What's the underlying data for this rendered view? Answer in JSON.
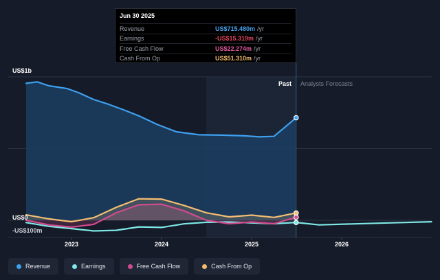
{
  "tooltip": {
    "date": "Jun 30 2025",
    "rows": [
      {
        "label": "Revenue",
        "value": "US$715.480m",
        "unit": "/yr",
        "color": "#4aa3ef"
      },
      {
        "label": "Earnings",
        "value": "-US$15.319m",
        "unit": "/yr",
        "color": "#e4455c"
      },
      {
        "label": "Free Cash Flow",
        "value": "US$22.274m",
        "unit": "/yr",
        "color": "#e25ca0"
      },
      {
        "label": "Cash From Op",
        "value": "US$51.310m",
        "unit": "/yr",
        "color": "#f2bd72"
      }
    ]
  },
  "chart_data": {
    "type": "line",
    "y_tick_labels": [
      "US$1b",
      "US$0",
      "-US$100m"
    ],
    "x_tick_labels": [
      "2023",
      "2024",
      "2025",
      "2026"
    ],
    "past_label": "Past",
    "forecast_label": "Analysts Forecasts",
    "y_range": [
      -100,
      1000
    ],
    "y_unit": "US$m",
    "grid": true,
    "legend_position": "bottom",
    "series": [
      {
        "name": "Revenue",
        "color": "#3ea0ef",
        "points": [
          [
            "2022-07-01",
            955
          ],
          [
            "2022-08-15",
            965
          ],
          [
            "2022-10-01",
            938
          ],
          [
            "2022-12-15",
            918
          ],
          [
            "2023-02-01",
            888
          ],
          [
            "2023-04-01",
            842
          ],
          [
            "2023-06-01",
            808
          ],
          [
            "2023-08-01",
            770
          ],
          [
            "2023-10-01",
            728
          ],
          [
            "2023-12-15",
            668
          ],
          [
            "2024-03-01",
            617
          ],
          [
            "2024-06-01",
            596
          ],
          [
            "2024-09-01",
            594
          ],
          [
            "2024-12-01",
            589
          ],
          [
            "2025-02-01",
            582
          ],
          [
            "2025-04-01",
            585
          ],
          [
            "2025-06-30",
            715
          ]
        ]
      },
      {
        "name": "Earnings",
        "color": "#7fe7e6",
        "points": [
          [
            "2022-07-01",
            -16
          ],
          [
            "2022-10-01",
            -42
          ],
          [
            "2023-01-01",
            -58
          ],
          [
            "2023-04-01",
            -74
          ],
          [
            "2023-07-01",
            -70
          ],
          [
            "2023-10-01",
            -46
          ],
          [
            "2024-01-01",
            -50
          ],
          [
            "2024-04-01",
            -25
          ],
          [
            "2024-07-01",
            -14
          ],
          [
            "2024-10-01",
            -12
          ],
          [
            "2025-01-01",
            -18
          ],
          [
            "2025-04-01",
            -24
          ],
          [
            "2025-06-30",
            -15
          ],
          [
            "2025-10-01",
            -32
          ],
          [
            "2026-06-01",
            -20
          ],
          [
            "2026-12-31",
            -10
          ]
        ]
      },
      {
        "name": "Free Cash Flow",
        "color": "#d04b8d",
        "points": [
          [
            "2022-07-01",
            0
          ],
          [
            "2022-10-01",
            -32
          ],
          [
            "2023-01-01",
            -48
          ],
          [
            "2023-04-01",
            -28
          ],
          [
            "2023-07-01",
            52
          ],
          [
            "2023-10-01",
            108
          ],
          [
            "2024-01-01",
            112
          ],
          [
            "2024-04-01",
            66
          ],
          [
            "2024-07-01",
            0
          ],
          [
            "2024-10-01",
            -24
          ],
          [
            "2025-01-01",
            -12
          ],
          [
            "2025-04-01",
            -24
          ],
          [
            "2025-06-30",
            22
          ]
        ]
      },
      {
        "name": "Cash From Op",
        "color": "#f3bd71",
        "points": [
          [
            "2022-07-01",
            38
          ],
          [
            "2022-10-01",
            10
          ],
          [
            "2023-01-01",
            -10
          ],
          [
            "2023-04-01",
            18
          ],
          [
            "2023-07-01",
            90
          ],
          [
            "2023-10-01",
            150
          ],
          [
            "2024-01-01",
            148
          ],
          [
            "2024-04-01",
            104
          ],
          [
            "2024-07-01",
            52
          ],
          [
            "2024-10-01",
            24
          ],
          [
            "2025-01-01",
            36
          ],
          [
            "2025-04-01",
            20
          ],
          [
            "2025-06-30",
            51
          ]
        ]
      }
    ]
  },
  "legend": [
    {
      "label": "Revenue",
      "color": "#3ea0ef"
    },
    {
      "label": "Earnings",
      "color": "#7fe7e6"
    },
    {
      "label": "Free Cash Flow",
      "color": "#d04b8d"
    },
    {
      "label": "Cash From Op",
      "color": "#f3bd71"
    }
  ]
}
